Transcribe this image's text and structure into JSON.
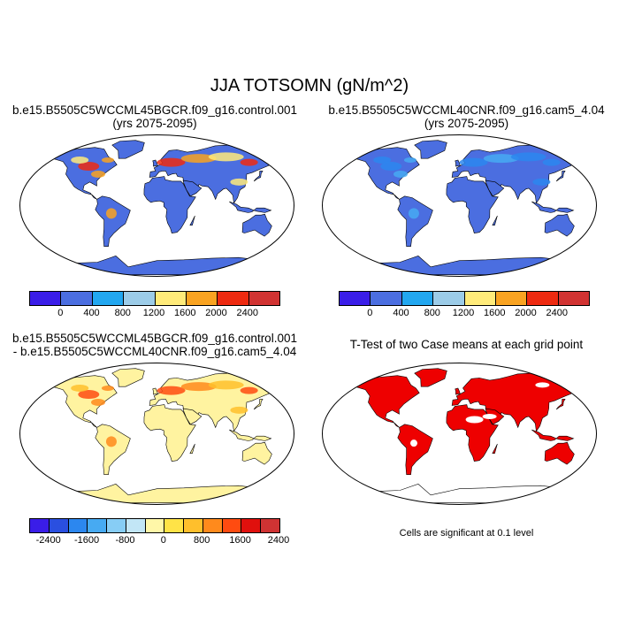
{
  "main_title": "JJA TOTSOMN (gN/m^2)",
  "panels": {
    "top_left": {
      "title_line1": "b.e15.B5505C5WCCML45BGCR.f09_g16.control.001",
      "title_line2": "(yrs 2075-2095)"
    },
    "top_right": {
      "title_line1": "b.e15.B5505C5WCCML40CNR.f09_g16.cam5_4.04",
      "title_line2": "(yrs 2075-2095)"
    },
    "bottom_left": {
      "title_line1": "b.e15.B5505C5WCCML45BGCR.f09_g16.control.001",
      "title_line2": "- b.e15.B5505C5WCCML40CNR.f09_g16.cam5_4.04"
    },
    "bottom_right": {
      "title_line1": "T-Test of two Case means at each grid point"
    }
  },
  "colorbars": {
    "abs": {
      "colors": [
        "#3a1de8",
        "#4b6ee0",
        "#22a7f0",
        "#9ccce8",
        "#ffeb7a",
        "#f9a321",
        "#ee2a10",
        "#d13332"
      ],
      "labels": [
        "0",
        "400",
        "800",
        "1200",
        "1600",
        "2000",
        "2400"
      ]
    },
    "diff": {
      "colors": [
        "#3a1de8",
        "#2a4fe0",
        "#2c87ef",
        "#47aaf2",
        "#87cdf5",
        "#c2e6f6",
        "#fff7a8",
        "#ffe347",
        "#ffbf2c",
        "#ff8a1c",
        "#ff4b10",
        "#e0100d",
        "#cf3333"
      ],
      "labels": [
        "-2400",
        "-1600",
        "-800",
        "0",
        "800",
        "1600",
        "2400"
      ]
    }
  },
  "ttest_note": "Cells are significant at 0.1 level",
  "colors": {
    "ocean": "#ffffff",
    "land_abs_base": "#4b6ee0",
    "land_diff_base": "#fff3a0",
    "significant": "#ee0000",
    "antarctica_ttest": "#ffffff"
  }
}
